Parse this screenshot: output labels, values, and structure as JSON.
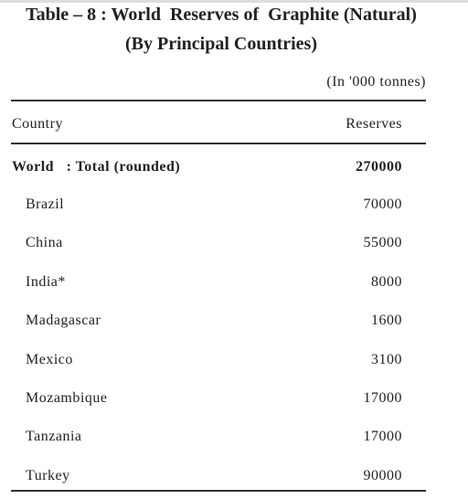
{
  "header": {
    "title": "Table – 8 : World  Reserves of  Graphite (Natural)",
    "subtitle": "(By Principal Countries)",
    "unit": "(In '000 tonnes)"
  },
  "table": {
    "columns": [
      "Country",
      "Reserves"
    ],
    "total": [
      "World   : Total (rounded)",
      270000
    ],
    "rows": [
      [
        "Brazil",
        70000
      ],
      [
        "China",
        55000
      ],
      [
        "India*",
        8000
      ],
      [
        "Madagascar",
        1600
      ],
      [
        "Mexico",
        3100
      ],
      [
        "Mozambique",
        17000
      ],
      [
        "Tanzania",
        17000
      ],
      [
        "Turkey",
        90000
      ]
    ]
  }
}
